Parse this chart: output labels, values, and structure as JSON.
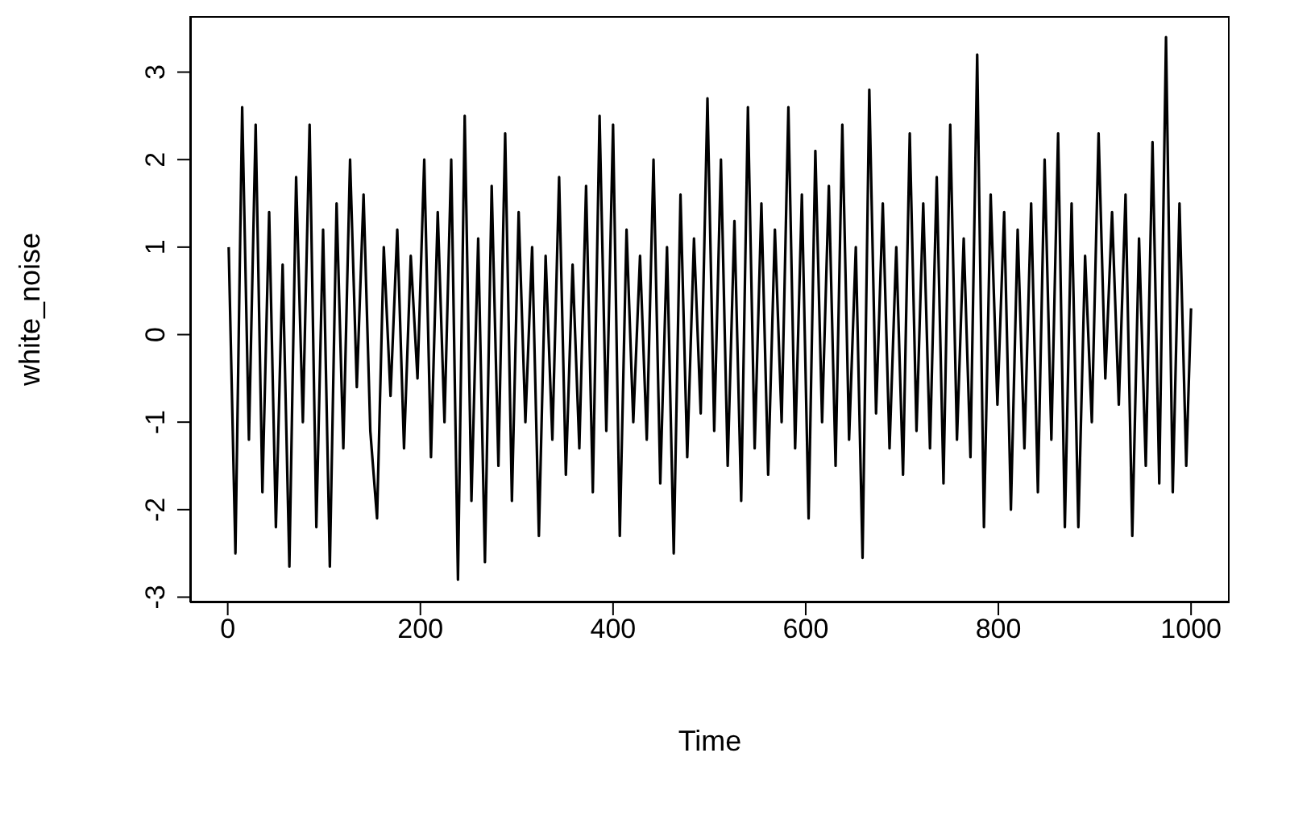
{
  "chart_data": {
    "type": "line",
    "xlabel": "Time",
    "ylabel": "white_noise",
    "x": [
      1,
      8,
      15,
      22,
      29,
      36,
      43,
      50,
      57,
      64,
      71,
      78,
      85,
      92,
      99,
      106,
      113,
      120,
      127,
      134,
      141,
      148,
      155,
      162,
      169,
      176,
      183,
      190,
      197,
      204,
      211,
      218,
      225,
      232,
      239,
      246,
      253,
      260,
      267,
      274,
      281,
      288,
      295,
      302,
      309,
      316,
      323,
      330,
      337,
      344,
      351,
      358,
      365,
      372,
      379,
      386,
      393,
      400,
      407,
      414,
      421,
      428,
      435,
      442,
      449,
      456,
      463,
      470,
      477,
      484,
      491,
      498,
      505,
      512,
      519,
      526,
      533,
      540,
      547,
      554,
      561,
      568,
      575,
      582,
      589,
      596,
      603,
      610,
      617,
      624,
      631,
      638,
      645,
      652,
      659,
      666,
      673,
      680,
      687,
      694,
      701,
      708,
      715,
      722,
      729,
      736,
      743,
      750,
      757,
      764,
      771,
      778,
      785,
      792,
      799,
      806,
      813,
      820,
      827,
      834,
      841,
      848,
      855,
      862,
      869,
      876,
      883,
      890,
      897,
      904,
      911,
      918,
      925,
      932,
      939,
      946,
      953,
      960,
      967,
      974,
      981,
      988,
      995,
      1000
    ],
    "series": [
      {
        "color": "#000000",
        "values": [
          1.0,
          -2.5,
          2.6,
          -1.2,
          2.4,
          -1.8,
          1.4,
          -2.2,
          0.8,
          -2.65,
          1.8,
          -1.0,
          2.4,
          -2.2,
          1.2,
          -2.65,
          1.5,
          -1.3,
          2.0,
          -0.6,
          1.6,
          -1.1,
          -2.1,
          1.0,
          -0.7,
          1.2,
          -1.3,
          0.9,
          -0.5,
          2.0,
          -1.4,
          1.4,
          -1.0,
          2.0,
          -2.8,
          2.5,
          -1.9,
          1.1,
          -2.6,
          1.7,
          -1.5,
          2.3,
          -1.9,
          1.4,
          -1.0,
          1.0,
          -2.3,
          0.9,
          -1.2,
          1.8,
          -1.6,
          0.8,
          -1.3,
          1.7,
          -1.8,
          2.5,
          -1.1,
          2.4,
          -2.3,
          1.2,
          -1.0,
          0.9,
          -1.2,
          2.0,
          -1.7,
          1.0,
          -2.5,
          1.6,
          -1.4,
          1.1,
          -0.9,
          2.7,
          -1.1,
          2.0,
          -1.5,
          1.3,
          -1.9,
          2.6,
          -1.3,
          1.5,
          -1.6,
          1.2,
          -1.0,
          2.6,
          -1.3,
          1.6,
          -2.1,
          2.1,
          -1.0,
          1.7,
          -1.5,
          2.4,
          -1.2,
          1.0,
          -2.55,
          2.8,
          -0.9,
          1.5,
          -1.3,
          1.0,
          -1.6,
          2.3,
          -1.1,
          1.5,
          -1.3,
          1.8,
          -1.7,
          2.4,
          -1.2,
          1.1,
          -1.4,
          3.2,
          -2.2,
          1.6,
          -0.8,
          1.4,
          -2.0,
          1.2,
          -1.3,
          1.5,
          -1.8,
          2.0,
          -1.2,
          2.3,
          -2.2,
          1.5,
          -2.2,
          0.9,
          -1.0,
          2.3,
          -0.5,
          1.4,
          -0.8,
          1.6,
          -2.3,
          1.1,
          -1.5,
          2.2,
          -1.7,
          3.4,
          -1.8,
          1.5,
          -1.5,
          0.3
        ]
      }
    ],
    "xlim": [
      -39,
      1040
    ],
    "xticks": [
      0,
      200,
      400,
      600,
      800,
      1000
    ],
    "ylim": [
      -3.06,
      3.64
    ],
    "yticks": [
      -3,
      -2,
      -1,
      0,
      1,
      2,
      3
    ],
    "grid": false,
    "legend": false,
    "marker": "none",
    "line_style": "solid"
  }
}
